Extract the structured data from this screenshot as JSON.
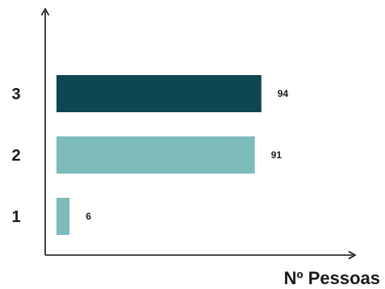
{
  "chart_data": {
    "type": "bar",
    "orientation": "horizontal",
    "categories": [
      "1",
      "2",
      "3"
    ],
    "values": [
      6,
      91,
      94
    ],
    "xlabel": "Nº Pessoas",
    "ylabel": "",
    "xlim": [
      0,
      150
    ],
    "grid": false,
    "bar_colors": [
      "#7dbcbb",
      "#7dbcbb",
      "#0e4652"
    ],
    "axis_color": "#111111"
  }
}
